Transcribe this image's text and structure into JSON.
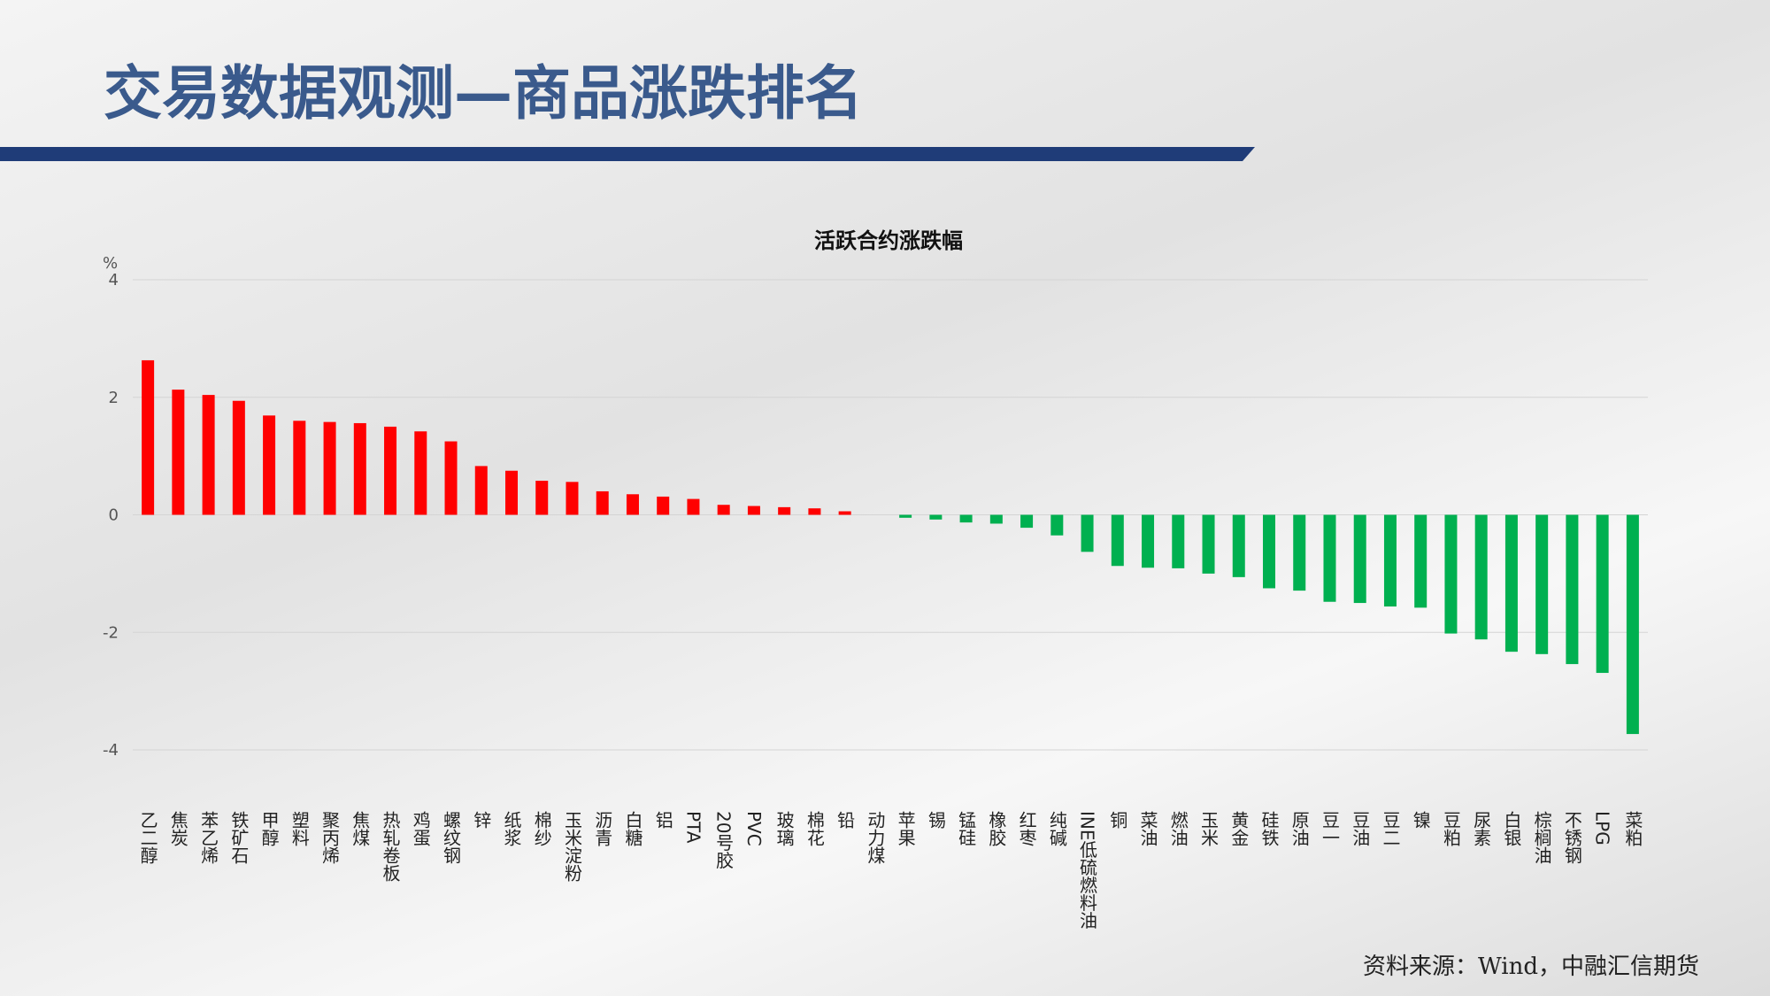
{
  "header": {
    "title": "交易数据观测—商品涨跌排名"
  },
  "chart_data": {
    "type": "bar",
    "title": "活跃合约涨跌幅",
    "y_unit": "%",
    "categories": [
      "乙二醇",
      "焦炭",
      "苯乙烯",
      "铁矿石",
      "甲醇",
      "塑料",
      "聚丙烯",
      "焦煤",
      "热轧卷板",
      "鸡蛋",
      "螺纹钢",
      "锌",
      "纸浆",
      "棉纱",
      "玉米淀粉",
      "沥青",
      "白糖",
      "铝",
      "PTA",
      "20号胶",
      "PVC",
      "玻璃",
      "棉花",
      "铅",
      "动力煤",
      "苹果",
      "锡",
      "锰硅",
      "橡胶",
      "红枣",
      "纯碱",
      "INE低硫燃料油",
      "铜",
      "菜油",
      "燃油",
      "玉米",
      "黄金",
      "硅铁",
      "原油",
      "豆一",
      "豆油",
      "豆二",
      "镍",
      "豆粕",
      "尿素",
      "白银",
      "棕榈油",
      "不锈钢",
      "LPG",
      "菜粕"
    ],
    "values": [
      2.63,
      2.13,
      2.04,
      1.94,
      1.69,
      1.6,
      1.58,
      1.56,
      1.5,
      1.42,
      1.25,
      0.83,
      0.75,
      0.58,
      0.56,
      0.4,
      0.35,
      0.31,
      0.27,
      0.17,
      0.15,
      0.13,
      0.11,
      0.06,
      0,
      -0.05,
      -0.08,
      -0.13,
      -0.15,
      -0.22,
      -0.35,
      -0.63,
      -0.87,
      -0.9,
      -0.91,
      -1.0,
      -1.06,
      -1.25,
      -1.29,
      -1.48,
      -1.5,
      -1.56,
      -1.58,
      -2.02,
      -2.12,
      -2.33,
      -2.37,
      -2.54,
      -2.69,
      -3.73
    ],
    "positive_color": "#ff0000",
    "negative_color": "#00b050",
    "ylim": [
      -4,
      4
    ],
    "yticks": [
      4,
      2,
      0,
      -2,
      -4
    ],
    "grid": true
  },
  "footer": {
    "source": "资料来源：Wind，中融汇信期货"
  }
}
